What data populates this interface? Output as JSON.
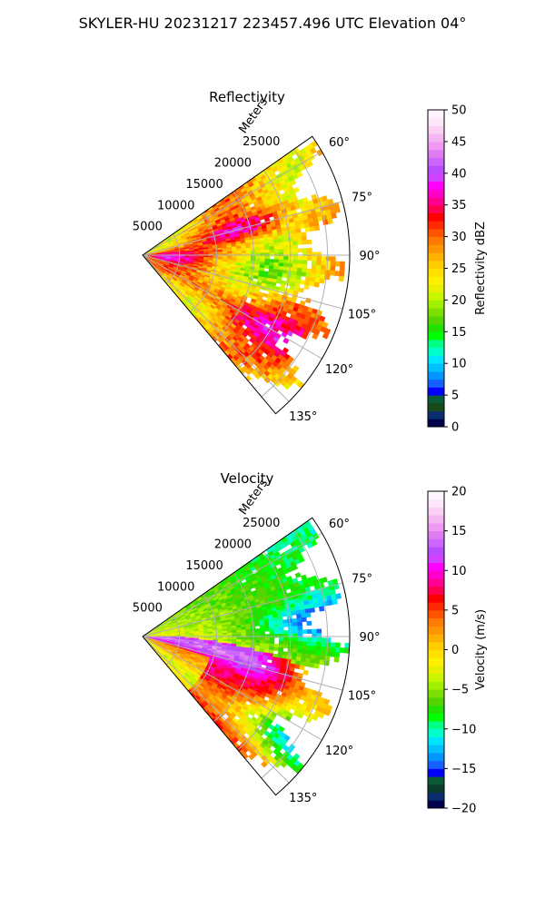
{
  "suptitle": "SKYLER-HU  20231217  223457.496 UTC Elevation 04°",
  "chart_data": [
    {
      "type": "heatmap",
      "projection": "polar-sector",
      "title": "Reflectivity",
      "r_axis_label": "Meters",
      "r_ticks": [
        "5000",
        "10000",
        "15000",
        "20000",
        "25000"
      ],
      "r_tick_values": [
        5000,
        10000,
        15000,
        20000,
        25000
      ],
      "r_max": 28000,
      "theta_ticks": [
        "60°",
        "75°",
        "90°",
        "105°",
        "120°",
        "135°"
      ],
      "theta_tick_values": [
        60,
        75,
        90,
        105,
        120,
        135
      ],
      "theta_range": [
        55,
        140
      ],
      "grid": true,
      "colorbar": {
        "label": "Reflectivity dBZ",
        "ticks": [
          "0",
          "5",
          "10",
          "15",
          "20",
          "25",
          "30",
          "35",
          "40",
          "45",
          "50"
        ],
        "range": [
          0,
          50
        ],
        "colors": [
          "#00004f",
          "#0a2d6e",
          "#1a4a1a",
          "#0b5a3a",
          "#0000ff",
          "#1560ff",
          "#0095ff",
          "#00bfff",
          "#00e5ff",
          "#00ffcc",
          "#00ff88",
          "#00ff00",
          "#22e000",
          "#55d400",
          "#7be000",
          "#a0f000",
          "#c8f500",
          "#e8f000",
          "#fff000",
          "#ffe000",
          "#ffcc00",
          "#ffb000",
          "#ff9500",
          "#ff7a00",
          "#ff5500",
          "#ff2a00",
          "#ff0000",
          "#ff0050",
          "#ff0090",
          "#ff00cc",
          "#ff00ff",
          "#d040ff",
          "#b84dff",
          "#cc66ff",
          "#e07cf2",
          "#f099f0",
          "#f5b5f0",
          "#fad0f5",
          "#fde6fa",
          "#fff5ff"
        ]
      }
    },
    {
      "type": "heatmap",
      "projection": "polar-sector",
      "title": "Velocity",
      "r_axis_label": "Meters",
      "r_ticks": [
        "5000",
        "10000",
        "15000",
        "20000",
        "25000"
      ],
      "r_tick_values": [
        5000,
        10000,
        15000,
        20000,
        25000
      ],
      "r_max": 28000,
      "theta_ticks": [
        "60°",
        "75°",
        "90°",
        "105°",
        "120°",
        "135°"
      ],
      "theta_tick_values": [
        60,
        75,
        90,
        105,
        120,
        135
      ],
      "theta_range": [
        55,
        140
      ],
      "grid": true,
      "colorbar": {
        "label": "Velocity (m/s)",
        "ticks": [
          "−20",
          "−15",
          "−10",
          "−5",
          "0",
          "5",
          "10",
          "15",
          "20"
        ],
        "range": [
          -20,
          20
        ],
        "colors": [
          "#00004f",
          "#0a2d6e",
          "#0b3d2a",
          "#0b5a3a",
          "#0000ff",
          "#1560ff",
          "#0095ff",
          "#00bfff",
          "#00e5ff",
          "#00ffcc",
          "#00ff88",
          "#00ff00",
          "#22e000",
          "#55d400",
          "#7be000",
          "#a0f000",
          "#c8f500",
          "#e8f000",
          "#fff000",
          "#ffe000",
          "#ffcc00",
          "#ffb000",
          "#ff9500",
          "#ff7a00",
          "#ff5500",
          "#ff2a00",
          "#ff0000",
          "#ff0050",
          "#ff0090",
          "#ff00cc",
          "#ff00ff",
          "#d040ff",
          "#b84dff",
          "#cc66ff",
          "#e07cf2",
          "#f099f0",
          "#f5b5f0",
          "#fad0f5",
          "#fde6fa",
          "#fff5ff"
        ]
      }
    }
  ]
}
